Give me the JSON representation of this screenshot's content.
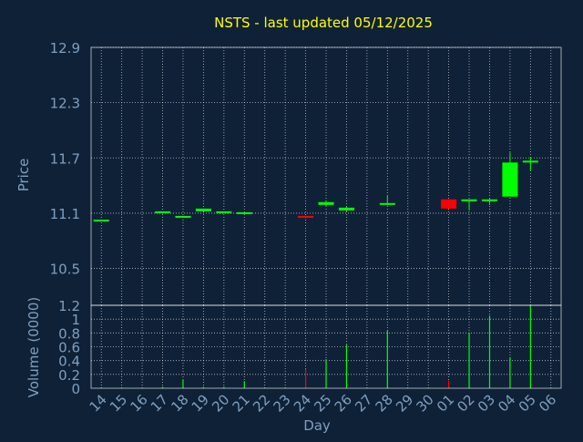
{
  "colors": {
    "background": "#0f2137",
    "title": "#ffff00",
    "axis_text": "#7f9fbf",
    "frame": "#ffffff",
    "grid": "#ffffff",
    "up": "#00ff00",
    "down": "#ff0000"
  },
  "chart_data": [
    {
      "type": "candlestick",
      "title": "NSTS - last updated 05/12/2025",
      "ylabel": "Price",
      "ylim": [
        10.1,
        12.9
      ],
      "yticks": [
        "12.9",
        "12.3",
        "11.7",
        "11.1",
        "10.5"
      ],
      "grid": true,
      "categories": [
        "14",
        "15",
        "16",
        "17",
        "18",
        "19",
        "20",
        "21",
        "22",
        "23",
        "24",
        "25",
        "26",
        "27",
        "28",
        "29",
        "30",
        "01",
        "02",
        "03",
        "04",
        "05",
        "06"
      ],
      "candles": [
        {
          "x": "14",
          "open": 11.03,
          "high": 11.03,
          "low": 11.03,
          "close": 11.03
        },
        {
          "x": "17",
          "open": 11.12,
          "high": 11.12,
          "low": 11.11,
          "close": 11.12
        },
        {
          "x": "18",
          "open": 11.06,
          "high": 11.07,
          "low": 11.06,
          "close": 11.07
        },
        {
          "x": "19",
          "open": 11.12,
          "high": 11.15,
          "low": 11.12,
          "close": 11.15
        },
        {
          "x": "20",
          "open": 11.11,
          "high": 11.12,
          "low": 11.1,
          "close": 11.12
        },
        {
          "x": "21",
          "open": 11.11,
          "high": 11.11,
          "low": 11.1,
          "close": 11.11
        },
        {
          "x": "24",
          "open": 11.07,
          "high": 11.07,
          "low": 11.04,
          "close": 11.05
        },
        {
          "x": "25",
          "open": 11.19,
          "high": 11.24,
          "low": 11.18,
          "close": 11.22
        },
        {
          "x": "26",
          "open": 11.13,
          "high": 11.17,
          "low": 11.12,
          "close": 11.16
        },
        {
          "x": "28",
          "open": 11.2,
          "high": 11.29,
          "low": 11.19,
          "close": 11.21
        },
        {
          "x": "01",
          "open": 11.25,
          "high": 11.25,
          "low": 11.15,
          "close": 11.15
        },
        {
          "x": "02",
          "open": 11.24,
          "high": 11.25,
          "low": 11.13,
          "close": 11.25
        },
        {
          "x": "03",
          "open": 11.23,
          "high": 11.26,
          "low": 11.19,
          "close": 11.25
        },
        {
          "x": "04",
          "open": 11.28,
          "high": 11.76,
          "low": 11.28,
          "close": 11.65
        },
        {
          "x": "05",
          "open": 11.66,
          "high": 11.71,
          "low": 11.56,
          "close": 11.67
        }
      ]
    },
    {
      "type": "bar",
      "xlabel": "Day",
      "ylabel": "Volume (0000)",
      "ylim": [
        0,
        1.2
      ],
      "yticks": [
        "1.2",
        "1",
        "0.8",
        "0.6",
        "0.4",
        "0.2",
        "0"
      ],
      "grid": true,
      "categories": [
        "14",
        "15",
        "16",
        "17",
        "18",
        "19",
        "20",
        "21",
        "22",
        "23",
        "24",
        "25",
        "26",
        "27",
        "28",
        "29",
        "30",
        "01",
        "02",
        "03",
        "04",
        "05",
        "06"
      ],
      "bars": [
        {
          "x": "14",
          "value": 0.01,
          "dir": "up"
        },
        {
          "x": "17",
          "value": 0.02,
          "dir": "up"
        },
        {
          "x": "18",
          "value": 0.12,
          "dir": "up"
        },
        {
          "x": "19",
          "value": 0.02,
          "dir": "up"
        },
        {
          "x": "20",
          "value": 0.02,
          "dir": "up"
        },
        {
          "x": "21",
          "value": 0.1,
          "dir": "up"
        },
        {
          "x": "24",
          "value": 0.28,
          "dir": "down"
        },
        {
          "x": "25",
          "value": 0.42,
          "dir": "up"
        },
        {
          "x": "26",
          "value": 0.63,
          "dir": "up"
        },
        {
          "x": "28",
          "value": 0.83,
          "dir": "up"
        },
        {
          "x": "01",
          "value": 0.11,
          "dir": "down"
        },
        {
          "x": "02",
          "value": 0.8,
          "dir": "up"
        },
        {
          "x": "03",
          "value": 1.05,
          "dir": "up"
        },
        {
          "x": "04",
          "value": 0.45,
          "dir": "up"
        },
        {
          "x": "05",
          "value": 1.2,
          "dir": "up"
        }
      ]
    }
  ]
}
